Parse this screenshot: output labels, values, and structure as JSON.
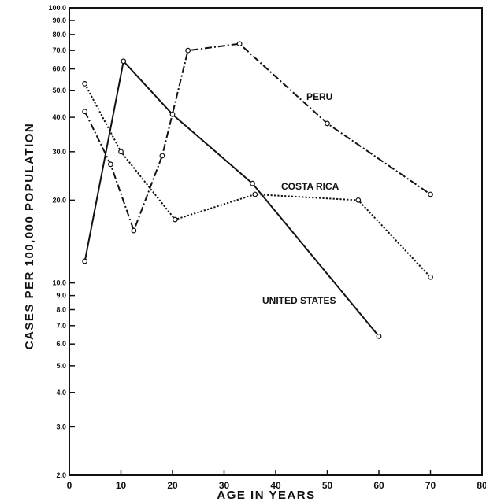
{
  "chart_data": {
    "type": "line",
    "xlabel": "AGE IN YEARS",
    "ylabel": "CASES PER 100,000 POPULATION",
    "xlim": [
      0,
      80
    ],
    "ylim": [
      2,
      100
    ],
    "y_scale": "log",
    "grid": false,
    "x_ticks": [
      "0",
      "10",
      "20",
      "30",
      "40",
      "50",
      "60",
      "70",
      "80"
    ],
    "y_ticks": [
      {
        "value": 100,
        "label": "100.0"
      },
      {
        "value": 90,
        "label": "90.0"
      },
      {
        "value": 80,
        "label": "80.0"
      },
      {
        "value": 70,
        "label": "70.0"
      },
      {
        "value": 60,
        "label": "60.0"
      },
      {
        "value": 50,
        "label": "50.0"
      },
      {
        "value": 40,
        "label": "40.0"
      },
      {
        "value": 30,
        "label": "30.0"
      },
      {
        "value": 20,
        "label": "20.0"
      },
      {
        "value": 10,
        "label": "10.0"
      },
      {
        "value": 9,
        "label": "9.0"
      },
      {
        "value": 8,
        "label": "8.0"
      },
      {
        "value": 7,
        "label": "7.0"
      },
      {
        "value": 6,
        "label": "6.0"
      },
      {
        "value": 5,
        "label": "5.0"
      },
      {
        "value": 4,
        "label": "4.0"
      },
      {
        "value": 3,
        "label": "3.0"
      },
      {
        "value": 2,
        "label": "2.0"
      }
    ],
    "series": [
      {
        "name": "PERU",
        "style": "dash-dot",
        "x": [
          3,
          8,
          12.5,
          18,
          23,
          33,
          50,
          70
        ],
        "y": [
          42,
          27,
          15.5,
          29,
          70,
          74,
          38,
          21
        ]
      },
      {
        "name": "COSTA RICA",
        "style": "dotted",
        "x": [
          3,
          10,
          20.5,
          36,
          56,
          70
        ],
        "y": [
          53,
          30,
          17,
          21,
          20,
          10.5
        ]
      },
      {
        "name": "UNITED STATES",
        "style": "solid",
        "x": [
          3,
          10.5,
          20,
          35.5,
          60
        ],
        "y": [
          12,
          64,
          41,
          23,
          6.4
        ]
      }
    ]
  },
  "colors": {
    "ink": "#111111",
    "background": "#ffffff"
  }
}
